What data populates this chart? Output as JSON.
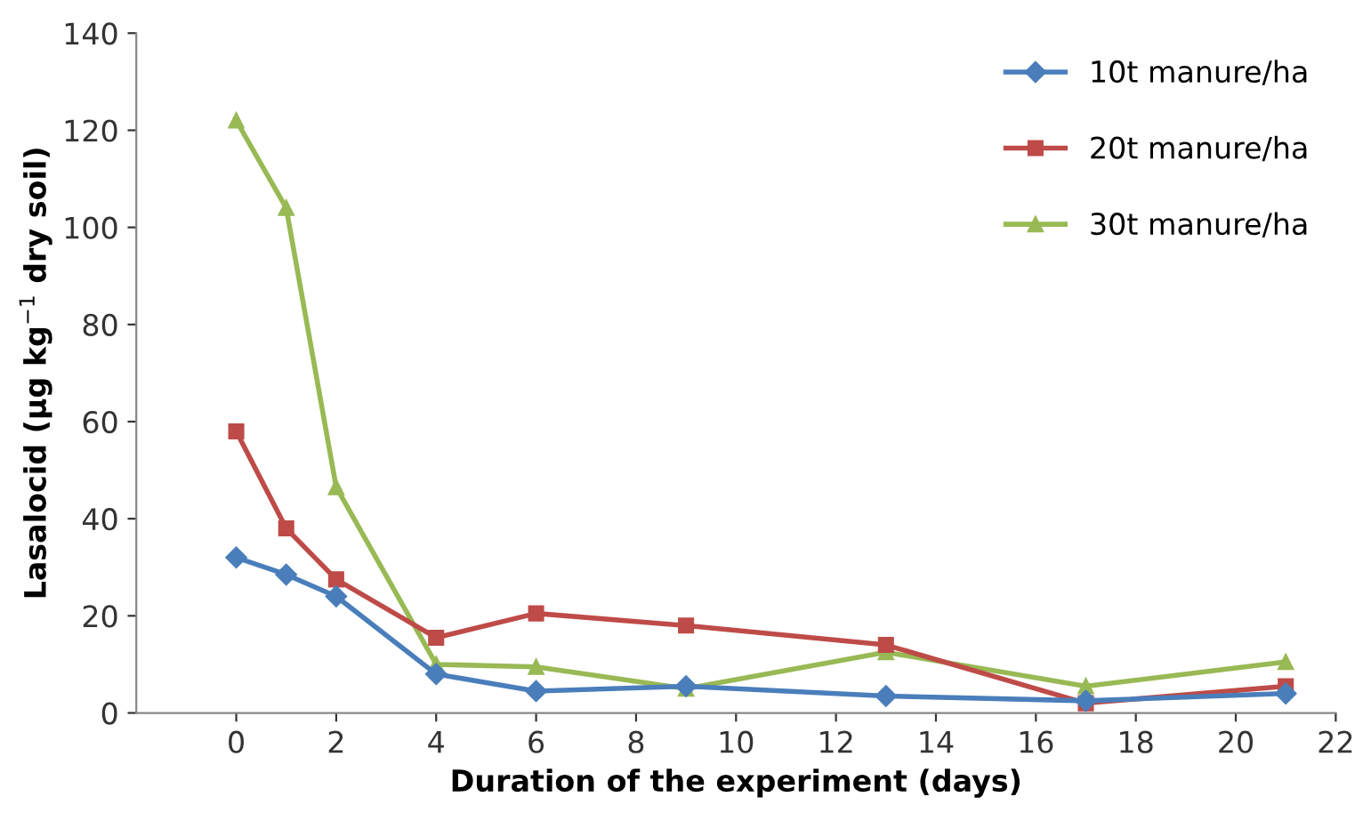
{
  "chart_data": {
    "type": "line",
    "xlabel": "Duration of the experiment (days)",
    "ylabel": "Lasalocid (µg kg$^{−1}$ dry soil)",
    "x": [
      0,
      1,
      2,
      4,
      6,
      9,
      13,
      17,
      21
    ],
    "series": [
      {
        "name": "10t manure/ha",
        "color": "#4a7ebb",
        "marker": "diamond",
        "values": [
          32,
          28.5,
          24,
          8,
          4.5,
          5.5,
          3.5,
          2.5,
          4
        ]
      },
      {
        "name": "20t manure/ha",
        "color": "#be4b48",
        "marker": "square",
        "values": [
          58,
          38,
          27.5,
          15.5,
          20.5,
          18,
          14,
          2,
          5.5
        ]
      },
      {
        "name": "30t manure/ha",
        "color": "#98b954",
        "marker": "triangle",
        "values": [
          122,
          104,
          46.5,
          10,
          9.5,
          5,
          12.5,
          5.5,
          10.5
        ]
      }
    ],
    "xlim": [
      -2,
      22
    ],
    "xticks": [
      0,
      2,
      4,
      6,
      8,
      10,
      12,
      14,
      16,
      18,
      20,
      22
    ],
    "ylim": [
      0,
      140
    ],
    "yticks": [
      0,
      20,
      40,
      60,
      80,
      100,
      120,
      140
    ],
    "grid": false,
    "legend": "top right",
    "line_style": "solid"
  }
}
